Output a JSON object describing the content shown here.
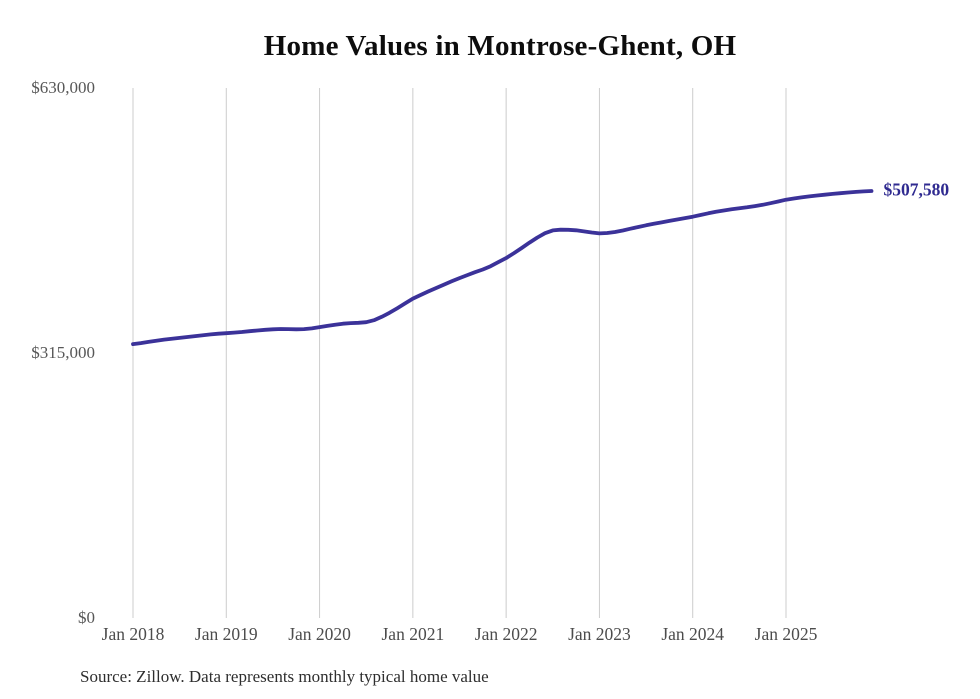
{
  "chart_data": {
    "type": "line",
    "title": "Home Values in Montrose-Ghent, OH",
    "source_note": "Source: Zillow. Data represents monthly typical home value",
    "end_label": "$507,580",
    "end_value": 507580,
    "line_color": "#3b3299",
    "end_label_color": "#2f2a90",
    "grid_color": "#cccccc",
    "grid": "vertical-only",
    "legend": "none",
    "ylim": [
      0,
      630000
    ],
    "y_ticks": [
      {
        "label": "$630,000",
        "value": 630000
      },
      {
        "label": "$315,000",
        "value": 315000
      },
      {
        "label": "$0",
        "value": 0
      }
    ],
    "x_ticks": [
      {
        "label": "Jan 2018",
        "month_index": 0
      },
      {
        "label": "Jan 2019",
        "month_index": 12
      },
      {
        "label": "Jan 2020",
        "month_index": 24
      },
      {
        "label": "Jan 2021",
        "month_index": 36
      },
      {
        "label": "Jan 2022",
        "month_index": 48
      },
      {
        "label": "Jan 2023",
        "month_index": 60
      },
      {
        "label": "Jan 2024",
        "month_index": 72
      },
      {
        "label": "Jan 2025",
        "month_index": 84
      }
    ],
    "x_start": "2018-01",
    "x_end": "2025-12",
    "series": [
      {
        "name": "Typical home value (monthly)",
        "values": [
          325600,
          326800,
          328200,
          329600,
          330900,
          332000,
          333000,
          334000,
          335100,
          336200,
          337100,
          337900,
          338500,
          339200,
          340000,
          340900,
          341800,
          342600,
          343200,
          343500,
          343400,
          343200,
          343400,
          344300,
          345800,
          347200,
          348600,
          349800,
          350500,
          350900,
          351600,
          354000,
          358000,
          362800,
          368200,
          374000,
          379700,
          384000,
          388200,
          392300,
          396300,
          400200,
          404000,
          407600,
          411000,
          414200,
          418200,
          423000,
          427800,
          433600,
          439800,
          446200,
          452200,
          457400,
          460700,
          461600,
          461500,
          460800,
          459600,
          458200,
          457200,
          457600,
          458800,
          460600,
          462700,
          464800,
          466800,
          468600,
          470300,
          472000,
          473700,
          475400,
          477000,
          479000,
          481000,
          482800,
          484400,
          485800,
          487000,
          488200,
          489600,
          491200,
          493100,
          495100,
          497200,
          498600,
          499900,
          501100,
          502200,
          503200,
          504100,
          505000,
          505800,
          506500,
          507100,
          507580
        ]
      }
    ]
  }
}
